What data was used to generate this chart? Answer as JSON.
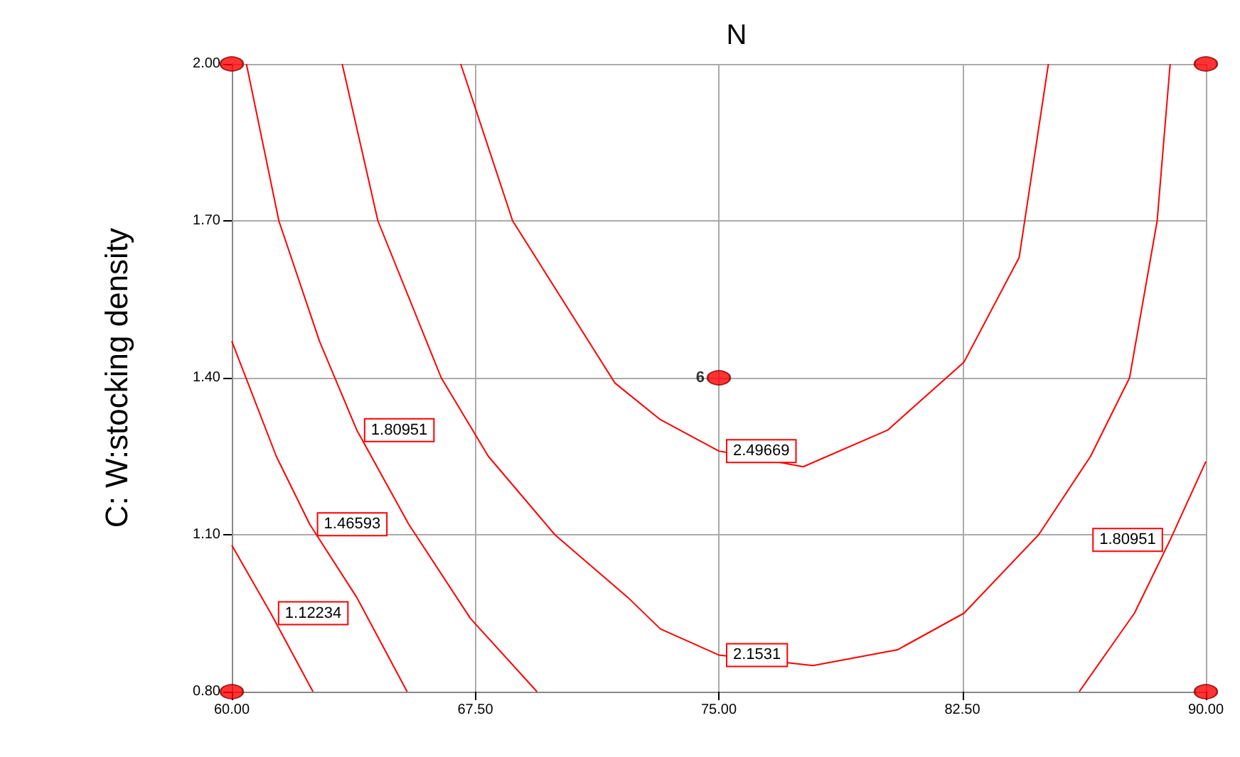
{
  "chart_data": {
    "type": "line",
    "title": "N",
    "ylabel": "C: W:stocking density",
    "xlim": [
      60,
      90
    ],
    "xticks": [
      {
        "value": 60,
        "label": "60.00"
      },
      {
        "value": 67.5,
        "label": "67.50"
      },
      {
        "value": 75,
        "label": "75.00"
      },
      {
        "value": 82.5,
        "label": "82.50"
      },
      {
        "value": 90,
        "label": "90.00"
      }
    ],
    "ylim": [
      0.8,
      2.0
    ],
    "yticks": [
      {
        "value": 0.8,
        "label": "0.80"
      },
      {
        "value": 1.1,
        "label": "1.10"
      },
      {
        "value": 1.4,
        "label": "1.40"
      },
      {
        "value": 1.7,
        "label": "1.70"
      },
      {
        "value": 2.0,
        "label": "2.00"
      }
    ],
    "grid": true,
    "legend": false,
    "marker": "none",
    "line_style": "solid",
    "annotations": [
      {
        "text": "6",
        "x": 75,
        "y": 1.4
      }
    ],
    "series": [
      {
        "name": "1.12234",
        "color": "#ff0000",
        "x": [
          60,
          61.2,
          62.5
        ],
        "values": [
          1.08,
          0.95,
          0.8
        ]
      },
      {
        "name": "1.46593",
        "color": "#ff0000",
        "x": [
          60,
          61.37,
          62.4,
          63.85,
          65.4
        ],
        "values": [
          1.47,
          1.25,
          1.12,
          0.98,
          0.8
        ]
      },
      {
        "name": "1.80951",
        "color": "#ff0000",
        "x": [
          60.45,
          61.45,
          62.7,
          63.85,
          65.45,
          67.35,
          69.4
        ],
        "values": [
          2.0,
          1.7,
          1.47,
          1.3,
          1.12,
          0.94,
          0.8
        ]
      },
      {
        "name": "1.80951",
        "color": "#ff0000",
        "x": [
          90,
          88.9,
          87.8,
          86.1
        ],
        "values": [
          1.24,
          1.09,
          0.95,
          0.8
        ]
      },
      {
        "name": "2.1531",
        "color": "#ff0000",
        "x": [
          63.4,
          64.5,
          66.45,
          67.9,
          69.95,
          72.2,
          73.2,
          75,
          77.9,
          80.5,
          82.55,
          84.85,
          86.45,
          87.65,
          88.5,
          88.9
        ],
        "values": [
          2.0,
          1.7,
          1.4,
          1.25,
          1.1,
          0.98,
          0.92,
          0.87,
          0.85,
          0.88,
          0.95,
          1.1,
          1.25,
          1.4,
          1.7,
          2.0
        ]
      },
      {
        "name": "2.49669",
        "color": "#ff0000",
        "x": [
          67.05,
          68.65,
          71.8,
          73.2,
          75,
          77.6,
          80.2,
          82.55,
          84.25,
          85.15
        ],
        "values": [
          2.0,
          1.7,
          1.39,
          1.32,
          1.26,
          1.23,
          1.3,
          1.43,
          1.63,
          2.0
        ]
      },
      {
        "type": "scatter",
        "color": "#ff0000",
        "marker": "circle",
        "x": [
          60,
          90,
          60,
          90,
          75
        ],
        "values": [
          2.0,
          2.0,
          0.8,
          0.8,
          1.4
        ]
      }
    ]
  }
}
